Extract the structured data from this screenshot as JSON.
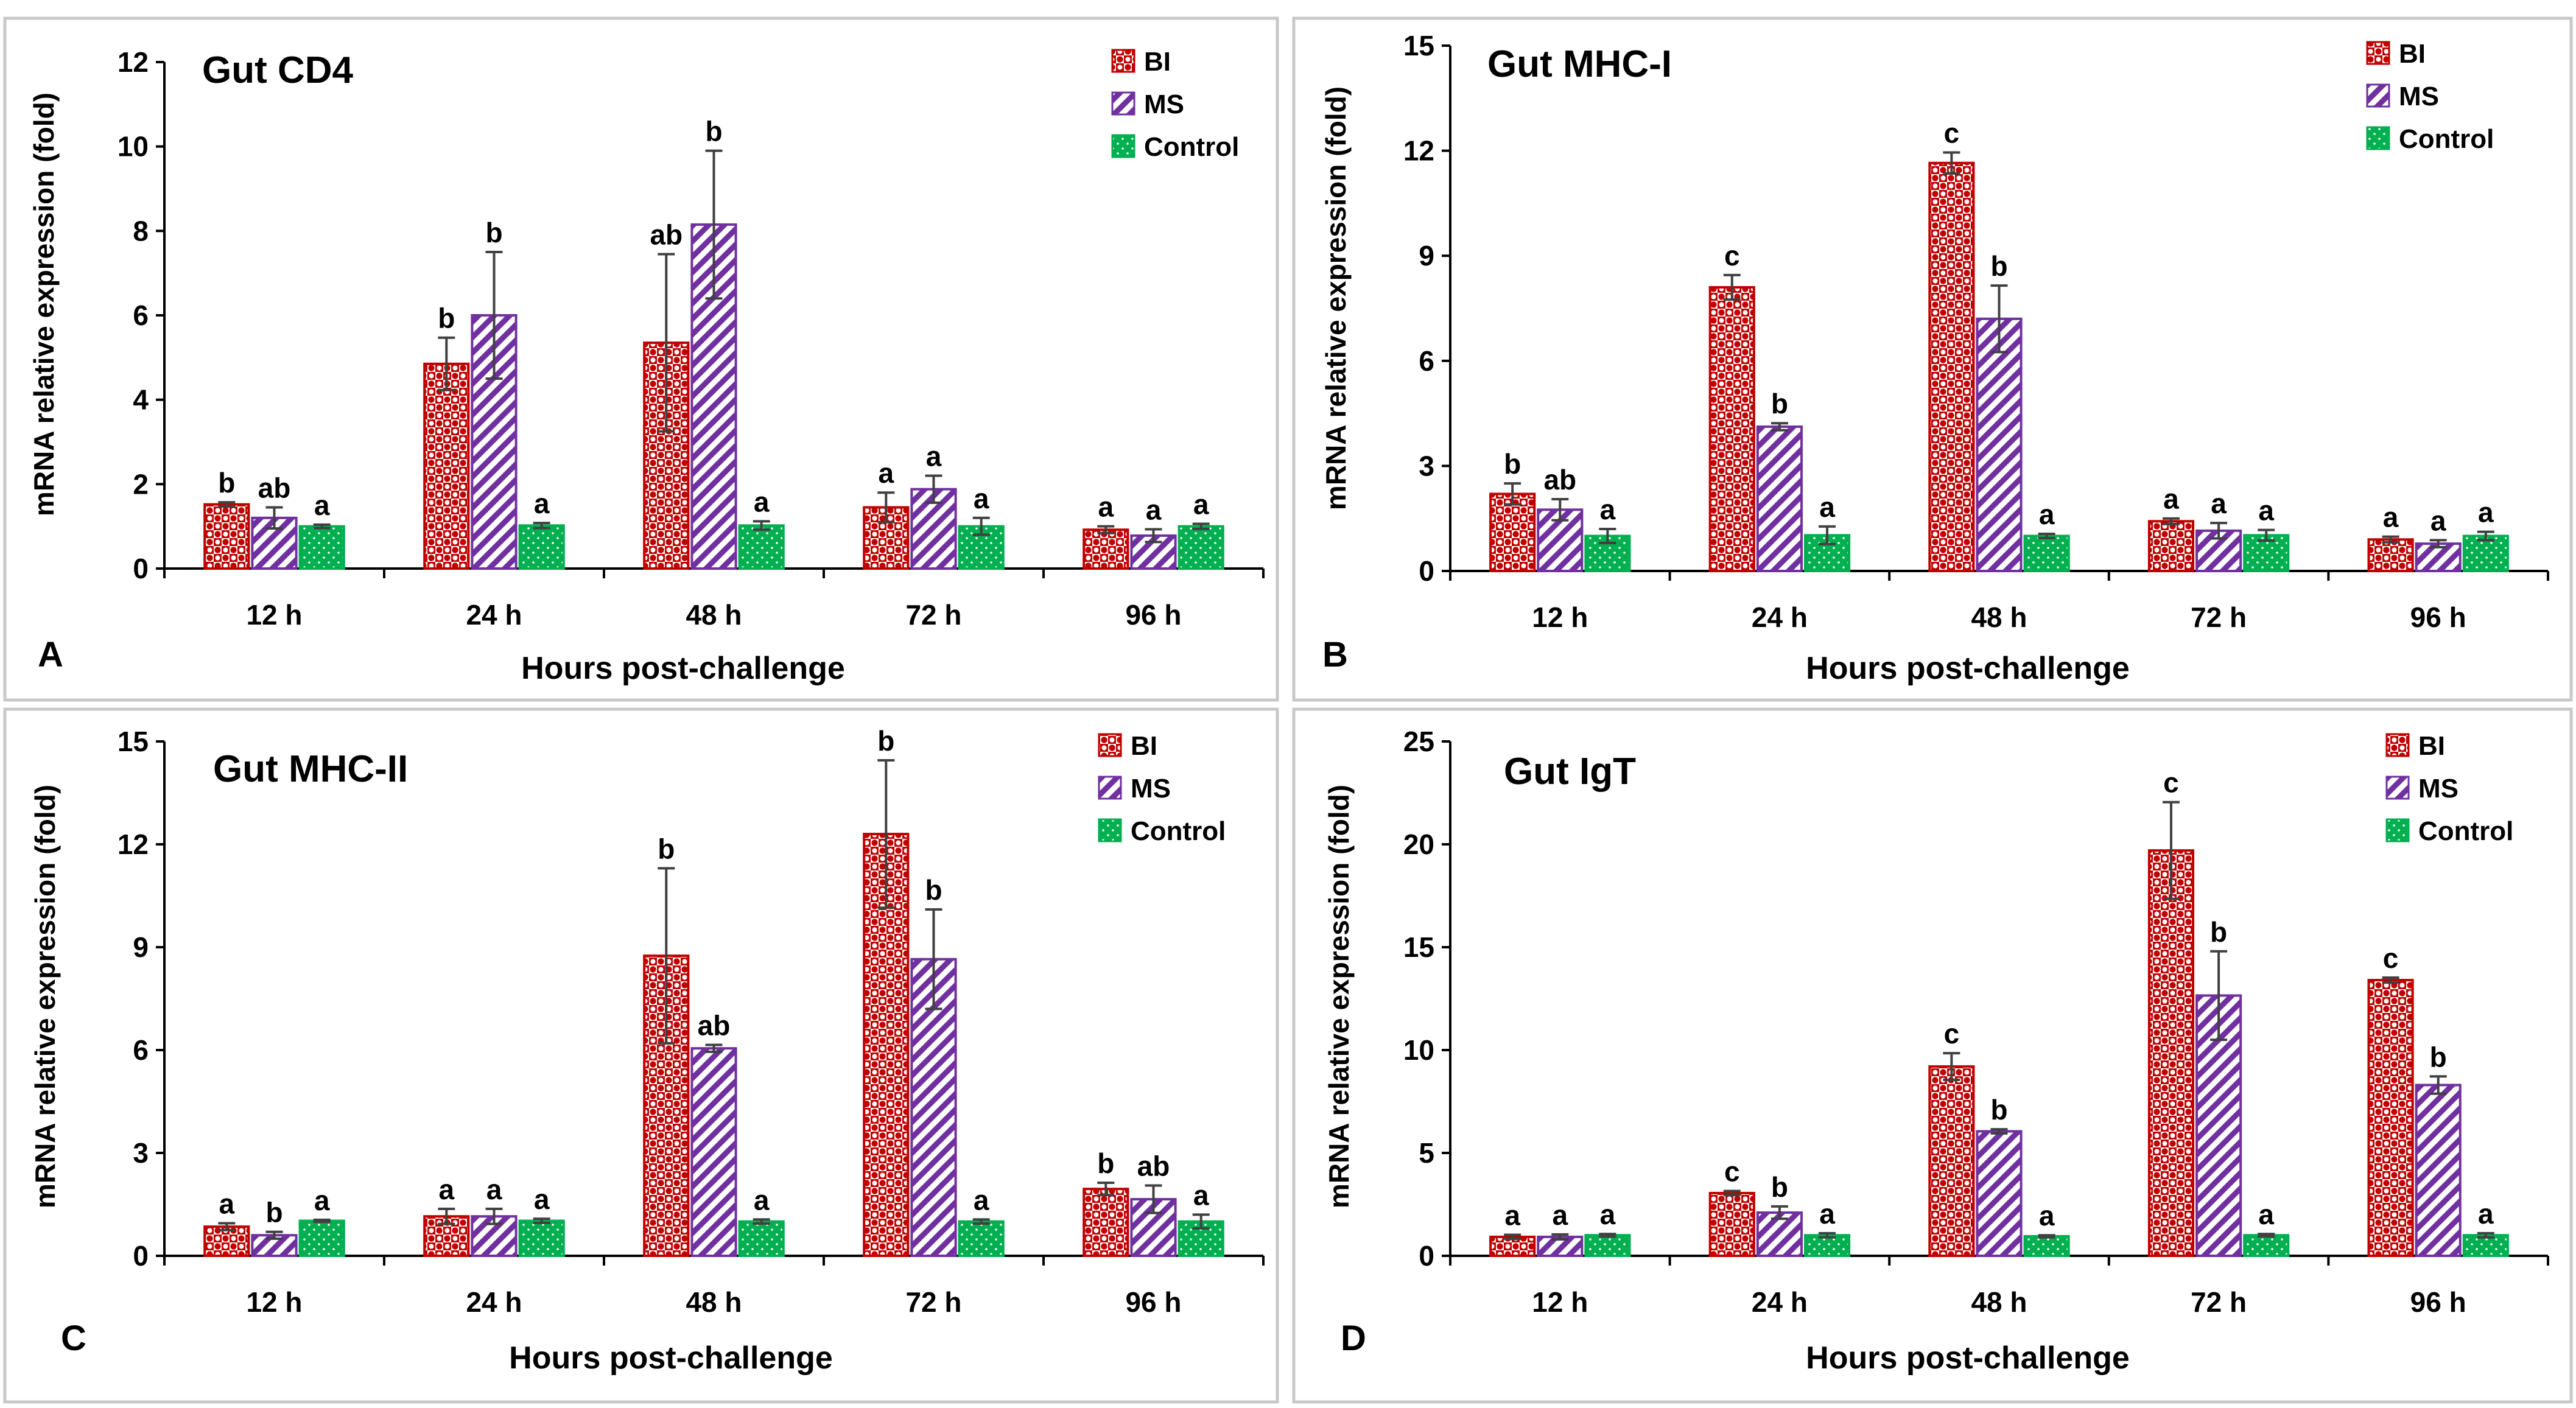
{
  "legend_colors": {
    "BI": "#c00000",
    "MS": "#7030a0",
    "Control": "#00b050"
  },
  "chart_data": [
    {
      "panel": "A",
      "type": "bar",
      "title": "Gut CD4",
      "xlabel": "Hours post-challenge",
      "ylabel": "mRNA relative expression (fold)",
      "categories": [
        "12 h",
        "24 h",
        "48 h",
        "72 h",
        "96 h"
      ],
      "ylim": [
        0,
        12
      ],
      "yticks": [
        0,
        2,
        4,
        6,
        8,
        10,
        12
      ],
      "legend_position": "top-right",
      "series": [
        {
          "name": "BI",
          "values": [
            1.52,
            4.85,
            5.35,
            1.45,
            0.92
          ],
          "errors": [
            0.05,
            0.62,
            2.1,
            0.35,
            0.08
          ],
          "letters": [
            "b",
            "b",
            "ab",
            "a",
            "a"
          ]
        },
        {
          "name": "MS",
          "values": [
            1.2,
            6.0,
            8.15,
            1.88,
            0.78
          ],
          "errors": [
            0.25,
            1.5,
            1.75,
            0.32,
            0.15
          ],
          "letters": [
            "ab",
            "b",
            "b",
            "a",
            "a"
          ]
        },
        {
          "name": "Control",
          "values": [
            1.0,
            1.02,
            1.02,
            1.0,
            1.0
          ],
          "errors": [
            0.04,
            0.06,
            0.1,
            0.2,
            0.06
          ],
          "letters": [
            "a",
            "a",
            "a",
            "a",
            "a"
          ]
        }
      ]
    },
    {
      "panel": "B",
      "type": "bar",
      "title": "Gut MHC-I",
      "xlabel": "Hours post-challenge",
      "ylabel": "mRNA relative expression (fold)",
      "categories": [
        "12 h",
        "24 h",
        "48 h",
        "72 h",
        "96 h"
      ],
      "ylim": [
        0,
        15
      ],
      "yticks": [
        0,
        3,
        6,
        9,
        12,
        15
      ],
      "legend_position": "top-right",
      "series": [
        {
          "name": "BI",
          "values": [
            2.2,
            8.1,
            11.65,
            1.42,
            0.9
          ],
          "errors": [
            0.3,
            0.35,
            0.3,
            0.08,
            0.08
          ],
          "letters": [
            "b",
            "c",
            "c",
            "a",
            "a"
          ]
        },
        {
          "name": "MS",
          "values": [
            1.75,
            4.12,
            7.2,
            1.15,
            0.78
          ],
          "errors": [
            0.3,
            0.1,
            0.95,
            0.22,
            0.1
          ],
          "letters": [
            "ab",
            "b",
            "b",
            "a",
            "a"
          ]
        },
        {
          "name": "Control",
          "values": [
            1.0,
            1.02,
            1.0,
            1.02,
            1.0
          ],
          "errors": [
            0.2,
            0.25,
            0.06,
            0.15,
            0.12
          ],
          "letters": [
            "a",
            "a",
            "a",
            "a",
            "a"
          ]
        }
      ]
    },
    {
      "panel": "C",
      "type": "bar",
      "title": "Gut MHC-II",
      "xlabel": "Hours post-challenge",
      "ylabel": "mRNA relative expression (fold)",
      "categories": [
        "12 h",
        "24 h",
        "48 h",
        "72 h",
        "96 h"
      ],
      "ylim": [
        0,
        15
      ],
      "yticks": [
        0,
        3,
        6,
        9,
        12,
        15
      ],
      "legend_position": "top-right",
      "series": [
        {
          "name": "BI",
          "values": [
            0.85,
            1.15,
            8.75,
            12.3,
            1.95
          ],
          "errors": [
            0.1,
            0.22,
            2.55,
            2.15,
            0.18
          ],
          "letters": [
            "a",
            "a",
            "b",
            "b",
            "b"
          ]
        },
        {
          "name": "MS",
          "values": [
            0.6,
            1.15,
            6.05,
            8.65,
            1.65
          ],
          "errors": [
            0.1,
            0.22,
            0.1,
            1.45,
            0.4
          ],
          "letters": [
            "b",
            "a",
            "ab",
            "b",
            "ab"
          ]
        },
        {
          "name": "Control",
          "values": [
            1.02,
            1.02,
            1.0,
            1.0,
            1.0
          ],
          "errors": [
            0.03,
            0.06,
            0.06,
            0.06,
            0.2
          ],
          "letters": [
            "a",
            "a",
            "a",
            "a",
            "a"
          ]
        }
      ]
    },
    {
      "panel": "D",
      "type": "bar",
      "title": "Gut IgT",
      "xlabel": "Hours post-challenge",
      "ylabel": "mRNA relative expression (fold)",
      "categories": [
        "12 h",
        "24 h",
        "48 h",
        "72 h",
        "96 h"
      ],
      "ylim": [
        0,
        25
      ],
      "yticks": [
        0,
        5,
        10,
        15,
        20,
        25
      ],
      "legend_position": "top-right",
      "series": [
        {
          "name": "BI",
          "values": [
            0.92,
            3.05,
            9.2,
            19.7,
            13.4
          ],
          "errors": [
            0.1,
            0.1,
            0.65,
            2.35,
            0.12
          ],
          "letters": [
            "a",
            "c",
            "c",
            "c",
            "c"
          ]
        },
        {
          "name": "MS",
          "values": [
            0.92,
            2.1,
            6.05,
            12.65,
            8.3
          ],
          "errors": [
            0.12,
            0.3,
            0.1,
            2.15,
            0.42
          ],
          "letters": [
            "a",
            "b",
            "b",
            "b",
            "b"
          ]
        },
        {
          "name": "Control",
          "values": [
            1.0,
            1.0,
            0.95,
            1.0,
            1.0
          ],
          "errors": [
            0.06,
            0.1,
            0.05,
            0.06,
            0.1
          ],
          "letters": [
            "a",
            "a",
            "a",
            "a",
            "a"
          ]
        }
      ]
    }
  ]
}
